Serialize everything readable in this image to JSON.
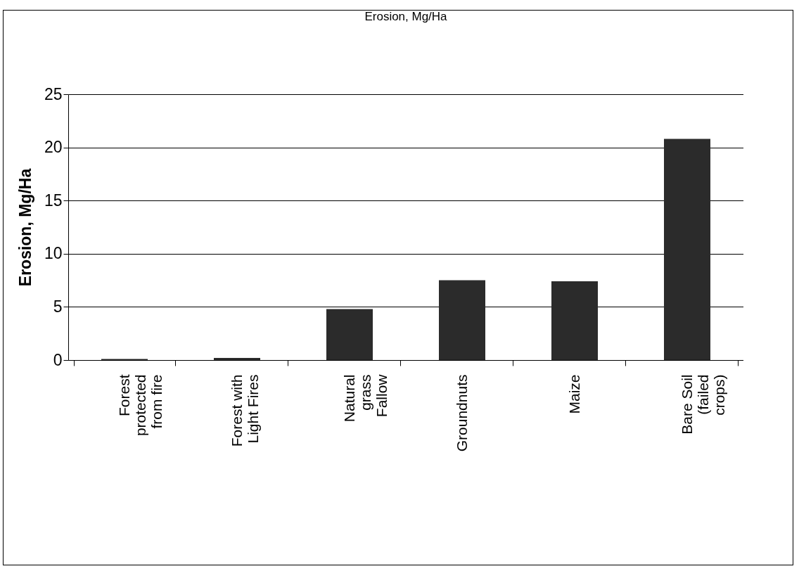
{
  "chart_data": {
    "type": "bar",
    "title": "Erosion, Mg/Ha",
    "ylabel": "Erosion, Mg/Ha",
    "categories": [
      "Forest protected from fire",
      "Forest with Light Fires",
      "Natural grass Fallow",
      "Groundnuts",
      "Maize",
      "Bare Soil (failed crops)"
    ],
    "values": [
      0.1,
      0.2,
      4.8,
      7.5,
      7.4,
      20.8
    ],
    "color": "#2b2b2b",
    "ylim": [
      0,
      25
    ],
    "yticks": [
      0,
      5,
      10,
      15,
      20,
      25
    ],
    "grid": "y"
  }
}
